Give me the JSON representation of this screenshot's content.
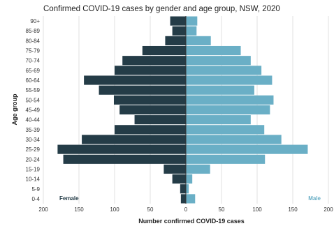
{
  "chart_data": {
    "type": "bar",
    "orientation": "horizontal-diverging",
    "title": "Confirmed COVID-19 cases by gender and age group, NSW, 2020",
    "xlabel": "Number confirmed COVID-19 cases",
    "ylabel": "Age group",
    "categories": [
      "90+",
      "85-89",
      "80-84",
      "75-79",
      "70-74",
      "65-69",
      "60-64",
      "55-59",
      "50-54",
      "45-49",
      "40-44",
      "35-39",
      "30-34",
      "25-29",
      "20-24",
      "15-19",
      "10-14",
      "5-9",
      "0-4"
    ],
    "x_ticks": [
      200,
      150,
      100,
      50,
      0,
      50,
      100,
      150,
      200
    ],
    "xlim": [
      -200,
      200
    ],
    "grid": true,
    "series": [
      {
        "name": "Female",
        "color": "#243c47",
        "side": "left",
        "values": [
          22,
          19,
          29,
          61,
          89,
          100,
          143,
          122,
          101,
          93,
          72,
          100,
          146,
          180,
          172,
          31,
          19,
          8,
          7
        ]
      },
      {
        "name": "Male",
        "color": "#6aafc6",
        "side": "right",
        "values": [
          16,
          15,
          35,
          77,
          91,
          106,
          121,
          96,
          123,
          118,
          91,
          110,
          134,
          171,
          111,
          34,
          9,
          4,
          13
        ]
      }
    ]
  }
}
